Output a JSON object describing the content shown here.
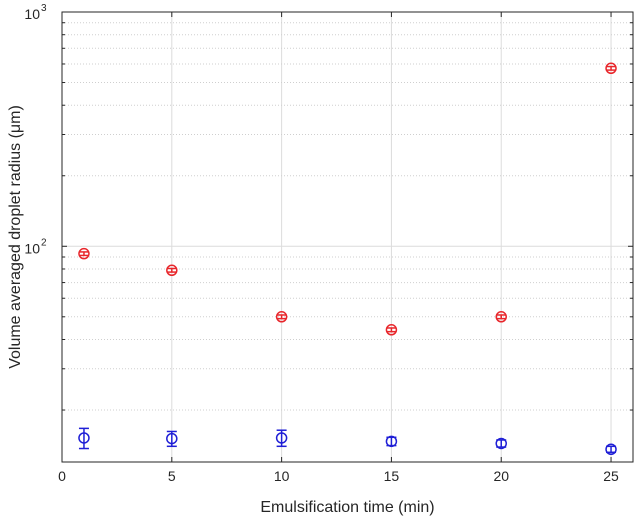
{
  "chart_data": {
    "type": "scatter",
    "title": "",
    "xlabel": "Emulsification time (min)",
    "ylabel": "Volume averaged droplet radius (μm)",
    "xlim": [
      0,
      26
    ],
    "ylim": [
      12,
      1000
    ],
    "yscale": "log",
    "grid": true,
    "legend": "none",
    "x_ticks": [
      0,
      5,
      10,
      15,
      20,
      25
    ],
    "y_ticks": [
      {
        "value": 100,
        "base": "10",
        "exponent": "2"
      },
      {
        "value": 1000,
        "base": "10",
        "exponent": "3"
      }
    ],
    "series": [
      {
        "color": "#e8262b",
        "marker": "circle",
        "x": [
          1,
          5,
          10,
          15,
          20,
          25
        ],
        "y": [
          93,
          79,
          50,
          44,
          50,
          575
        ],
        "err_low": [
          1.6,
          1.4,
          0.9,
          0.8,
          0.9,
          10
        ],
        "err_high": [
          1.6,
          1.4,
          0.9,
          0.8,
          0.9,
          10
        ]
      },
      {
        "color": "#1f1fd6",
        "marker": "circle",
        "x": [
          1,
          5,
          10,
          15,
          20,
          25
        ],
        "y": [
          15.2,
          15.1,
          15.2,
          14.7,
          14.4,
          13.6
        ],
        "err_low": [
          1.5,
          1.1,
          1.2,
          0.6,
          0.5,
          0.4
        ],
        "err_high": [
          1.5,
          1.1,
          1.2,
          0.6,
          0.5,
          0.4
        ]
      }
    ]
  }
}
